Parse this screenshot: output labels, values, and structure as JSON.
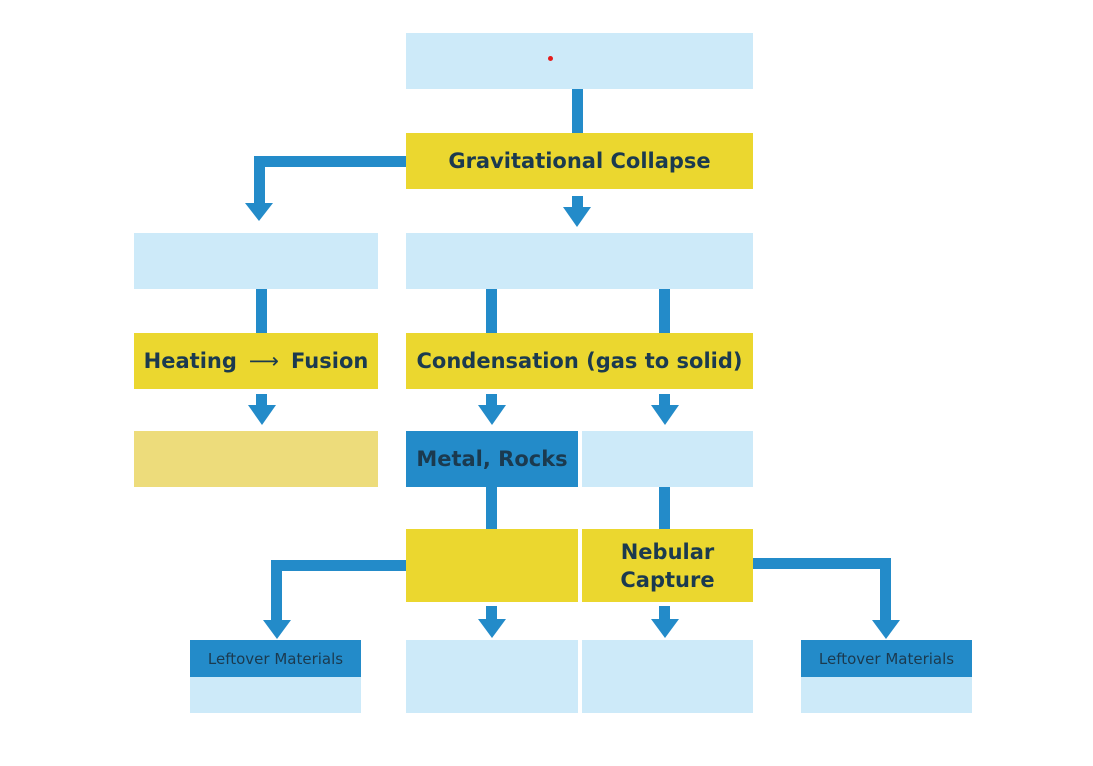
{
  "colors": {
    "connector": "#238bc9",
    "blank_box": "#cdeaf9",
    "process_box": "#ebd72f",
    "result_box": "#eddc7b",
    "highlight_box": "#238bc9"
  },
  "nodes": {
    "top": "",
    "collapse": "Gravitational Collapse",
    "left_mid": "",
    "center_mid": "",
    "heating": "Heating",
    "fusion": "Fusion",
    "heating_arrow": "⟶",
    "condensation": "Condensation (gas to solid)",
    "left_result": "",
    "metal_rocks": "Metal, Rocks",
    "right_result": "",
    "accretion": "",
    "nebular_line1": "Nebular",
    "nebular_line2": "Capture",
    "bottom_center_left": "",
    "bottom_center_right": "",
    "leftover_left": "Leftover Materials",
    "leftover_right": "Leftover Materials"
  }
}
